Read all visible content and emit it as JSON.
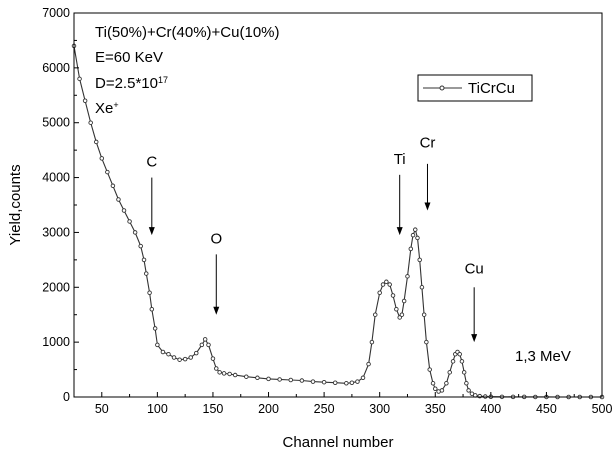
{
  "chart_data": {
    "type": "line",
    "title": "",
    "xlabel": "Channel number",
    "ylabel": "Yield,counts",
    "xlim": [
      25,
      500
    ],
    "ylim": [
      0,
      7000
    ],
    "x_ticks": [
      50,
      100,
      150,
      200,
      250,
      300,
      350,
      400,
      450,
      500
    ],
    "y_ticks": [
      0,
      1000,
      2000,
      3000,
      4000,
      5000,
      6000,
      7000
    ],
    "grid": false,
    "legend_position": "top-right",
    "info_lines": [
      "Ti(50%)+Cr(40%)+Cu(10%)",
      "E=60 KeV",
      {
        "base": "D=2.5*10",
        "sup": "17"
      },
      {
        "base": "Xe",
        "sup": "+"
      }
    ],
    "energy_label": "1,3 MeV",
    "series": [
      {
        "name": "TiCrCu",
        "color": "#333333",
        "marker": "open-circle",
        "x": [
          25,
          30,
          35,
          40,
          45,
          50,
          55,
          60,
          65,
          70,
          75,
          80,
          85,
          88,
          90,
          93,
          95,
          98,
          100,
          105,
          110,
          115,
          120,
          125,
          130,
          135,
          140,
          143,
          146,
          150,
          153,
          156,
          160,
          165,
          170,
          180,
          190,
          200,
          210,
          220,
          230,
          240,
          250,
          260,
          270,
          275,
          280,
          285,
          290,
          293,
          296,
          300,
          303,
          306,
          309,
          312,
          315,
          318,
          320,
          322,
          325,
          328,
          330,
          332,
          334,
          336,
          338,
          340,
          342,
          345,
          348,
          350,
          353,
          356,
          360,
          363,
          366,
          368,
          370,
          372,
          374,
          376,
          378,
          380,
          383,
          386,
          390,
          395,
          400,
          410,
          420,
          430,
          440,
          450,
          460,
          470,
          480,
          490,
          500
        ],
        "y": [
          6400,
          5800,
          5400,
          5000,
          4650,
          4350,
          4100,
          3850,
          3600,
          3400,
          3200,
          3000,
          2750,
          2500,
          2250,
          1900,
          1600,
          1250,
          950,
          820,
          780,
          720,
          680,
          690,
          720,
          800,
          950,
          1050,
          950,
          700,
          520,
          450,
          430,
          420,
          400,
          370,
          350,
          330,
          320,
          310,
          300,
          280,
          270,
          260,
          250,
          260,
          280,
          350,
          600,
          1000,
          1500,
          1900,
          2050,
          2100,
          2050,
          1850,
          1600,
          1450,
          1500,
          1750,
          2200,
          2700,
          2950,
          3050,
          2900,
          2500,
          2000,
          1500,
          1000,
          500,
          250,
          150,
          100,
          120,
          250,
          450,
          650,
          780,
          820,
          780,
          650,
          450,
          250,
          120,
          60,
          30,
          15,
          8,
          5,
          3,
          2,
          2,
          1,
          1,
          0,
          0,
          0,
          0,
          0
        ]
      }
    ],
    "annotations": [
      {
        "label": "C",
        "x": 95,
        "y_top": 4000,
        "y_tip": 2950,
        "y_text": 4200
      },
      {
        "label": "O",
        "x": 153,
        "y_top": 2600,
        "y_tip": 1500,
        "y_text": 2800
      },
      {
        "label": "Ti",
        "x": 318,
        "y_top": 4050,
        "y_tip": 2950,
        "y_text": 4250
      },
      {
        "label": "Cr",
        "x": 343,
        "y_top": 4250,
        "y_tip": 3400,
        "y_text": 4550
      },
      {
        "label": "Cu",
        "x": 385,
        "y_top": 2000,
        "y_tip": 1000,
        "y_text": 2250
      }
    ]
  }
}
